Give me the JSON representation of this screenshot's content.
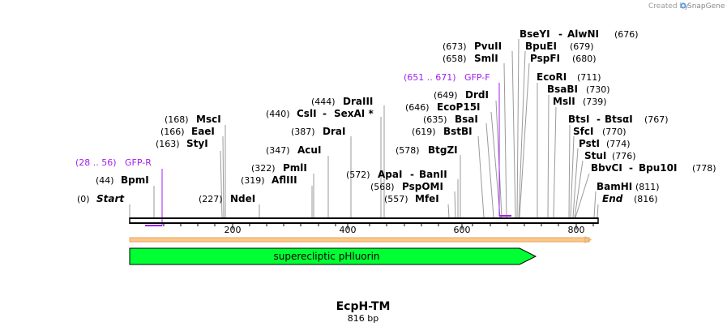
{
  "credit": {
    "prefix": "Created by",
    "brand": "SnapGene"
  },
  "title": "EcpH-TM",
  "length_label": "816 bp",
  "ticks": [
    "200",
    "400",
    "600",
    "800"
  ],
  "feature": {
    "label": "superecliptic pHluorin"
  },
  "primers": [
    {
      "range": "(28 .. 56)",
      "name": "GFP-R"
    },
    {
      "range": "(651 .. 671)",
      "name": "GFP-F"
    }
  ],
  "sites": [
    {
      "pos": "(0)",
      "name": "Start",
      "name2": ""
    },
    {
      "pos": "(44)",
      "name": "BpmI",
      "name2": ""
    },
    {
      "pos": "(163)",
      "name": "StyI",
      "name2": ""
    },
    {
      "pos": "(166)",
      "name": "EaeI",
      "name2": ""
    },
    {
      "pos": "(168)",
      "name": "MscI",
      "name2": ""
    },
    {
      "pos": "(227)",
      "name": "NdeI",
      "name2": ""
    },
    {
      "pos": "(319)",
      "name": "AflIII",
      "name2": ""
    },
    {
      "pos": "(322)",
      "name": "PmlI",
      "name2": ""
    },
    {
      "pos": "(347)",
      "name": "AcuI",
      "name2": ""
    },
    {
      "pos": "(387)",
      "name": "DraI",
      "name2": ""
    },
    {
      "pos": "(440)",
      "name": "CslI",
      "name2": "SexAI *"
    },
    {
      "pos": "(444)",
      "name": "DraIII",
      "name2": ""
    },
    {
      "pos": "(557)",
      "name": "MfeI",
      "name2": ""
    },
    {
      "pos": "(568)",
      "name": "PspOMI",
      "name2": ""
    },
    {
      "pos": "(572)",
      "name": "ApaI",
      "name2": "BanII"
    },
    {
      "pos": "(578)",
      "name": "BtgZI",
      "name2": ""
    },
    {
      "pos": "(619)",
      "name": "BstBI",
      "name2": ""
    },
    {
      "pos": "(635)",
      "name": "BsaI",
      "name2": ""
    },
    {
      "pos": "(646)",
      "name": "EcoP15I",
      "name2": ""
    },
    {
      "pos": "(649)",
      "name": "DrdI",
      "name2": ""
    },
    {
      "pos": "(658)",
      "name": "SmlI",
      "name2": ""
    },
    {
      "pos": "(673)",
      "name": "PvuII",
      "name2": ""
    },
    {
      "pos": "(676)",
      "name": "BseYI",
      "name2": "AlwNI"
    },
    {
      "pos": "(679)",
      "name": "BpuEI",
      "name2": ""
    },
    {
      "pos": "(680)",
      "name": "PspFI",
      "name2": ""
    },
    {
      "pos": "(711)",
      "name": "EcoRI",
      "name2": ""
    },
    {
      "pos": "(730)",
      "name": "BsaBI",
      "name2": ""
    },
    {
      "pos": "(739)",
      "name": "MslI",
      "name2": ""
    },
    {
      "pos": "(767)",
      "name": "BtsI",
      "name2": "BtsαI"
    },
    {
      "pos": "(770)",
      "name": "SfcI",
      "name2": ""
    },
    {
      "pos": "(774)",
      "name": "PstI",
      "name2": ""
    },
    {
      "pos": "(776)",
      "name": "StuI",
      "name2": ""
    },
    {
      "pos": "(778)",
      "name": "BbvCI",
      "name2": "Bpu10I"
    },
    {
      "pos": "(811)",
      "name": "BamHI",
      "name2": ""
    },
    {
      "pos": "(816)",
      "name": "End",
      "name2": ""
    }
  ],
  "colors": {
    "feature_fill": "#00ff33",
    "primer": "#a020f0",
    "orf_fill": "#f9c88c",
    "orf_stroke": "#e8a45c",
    "backbone": "#000000",
    "leader": "#9a9a9a"
  }
}
